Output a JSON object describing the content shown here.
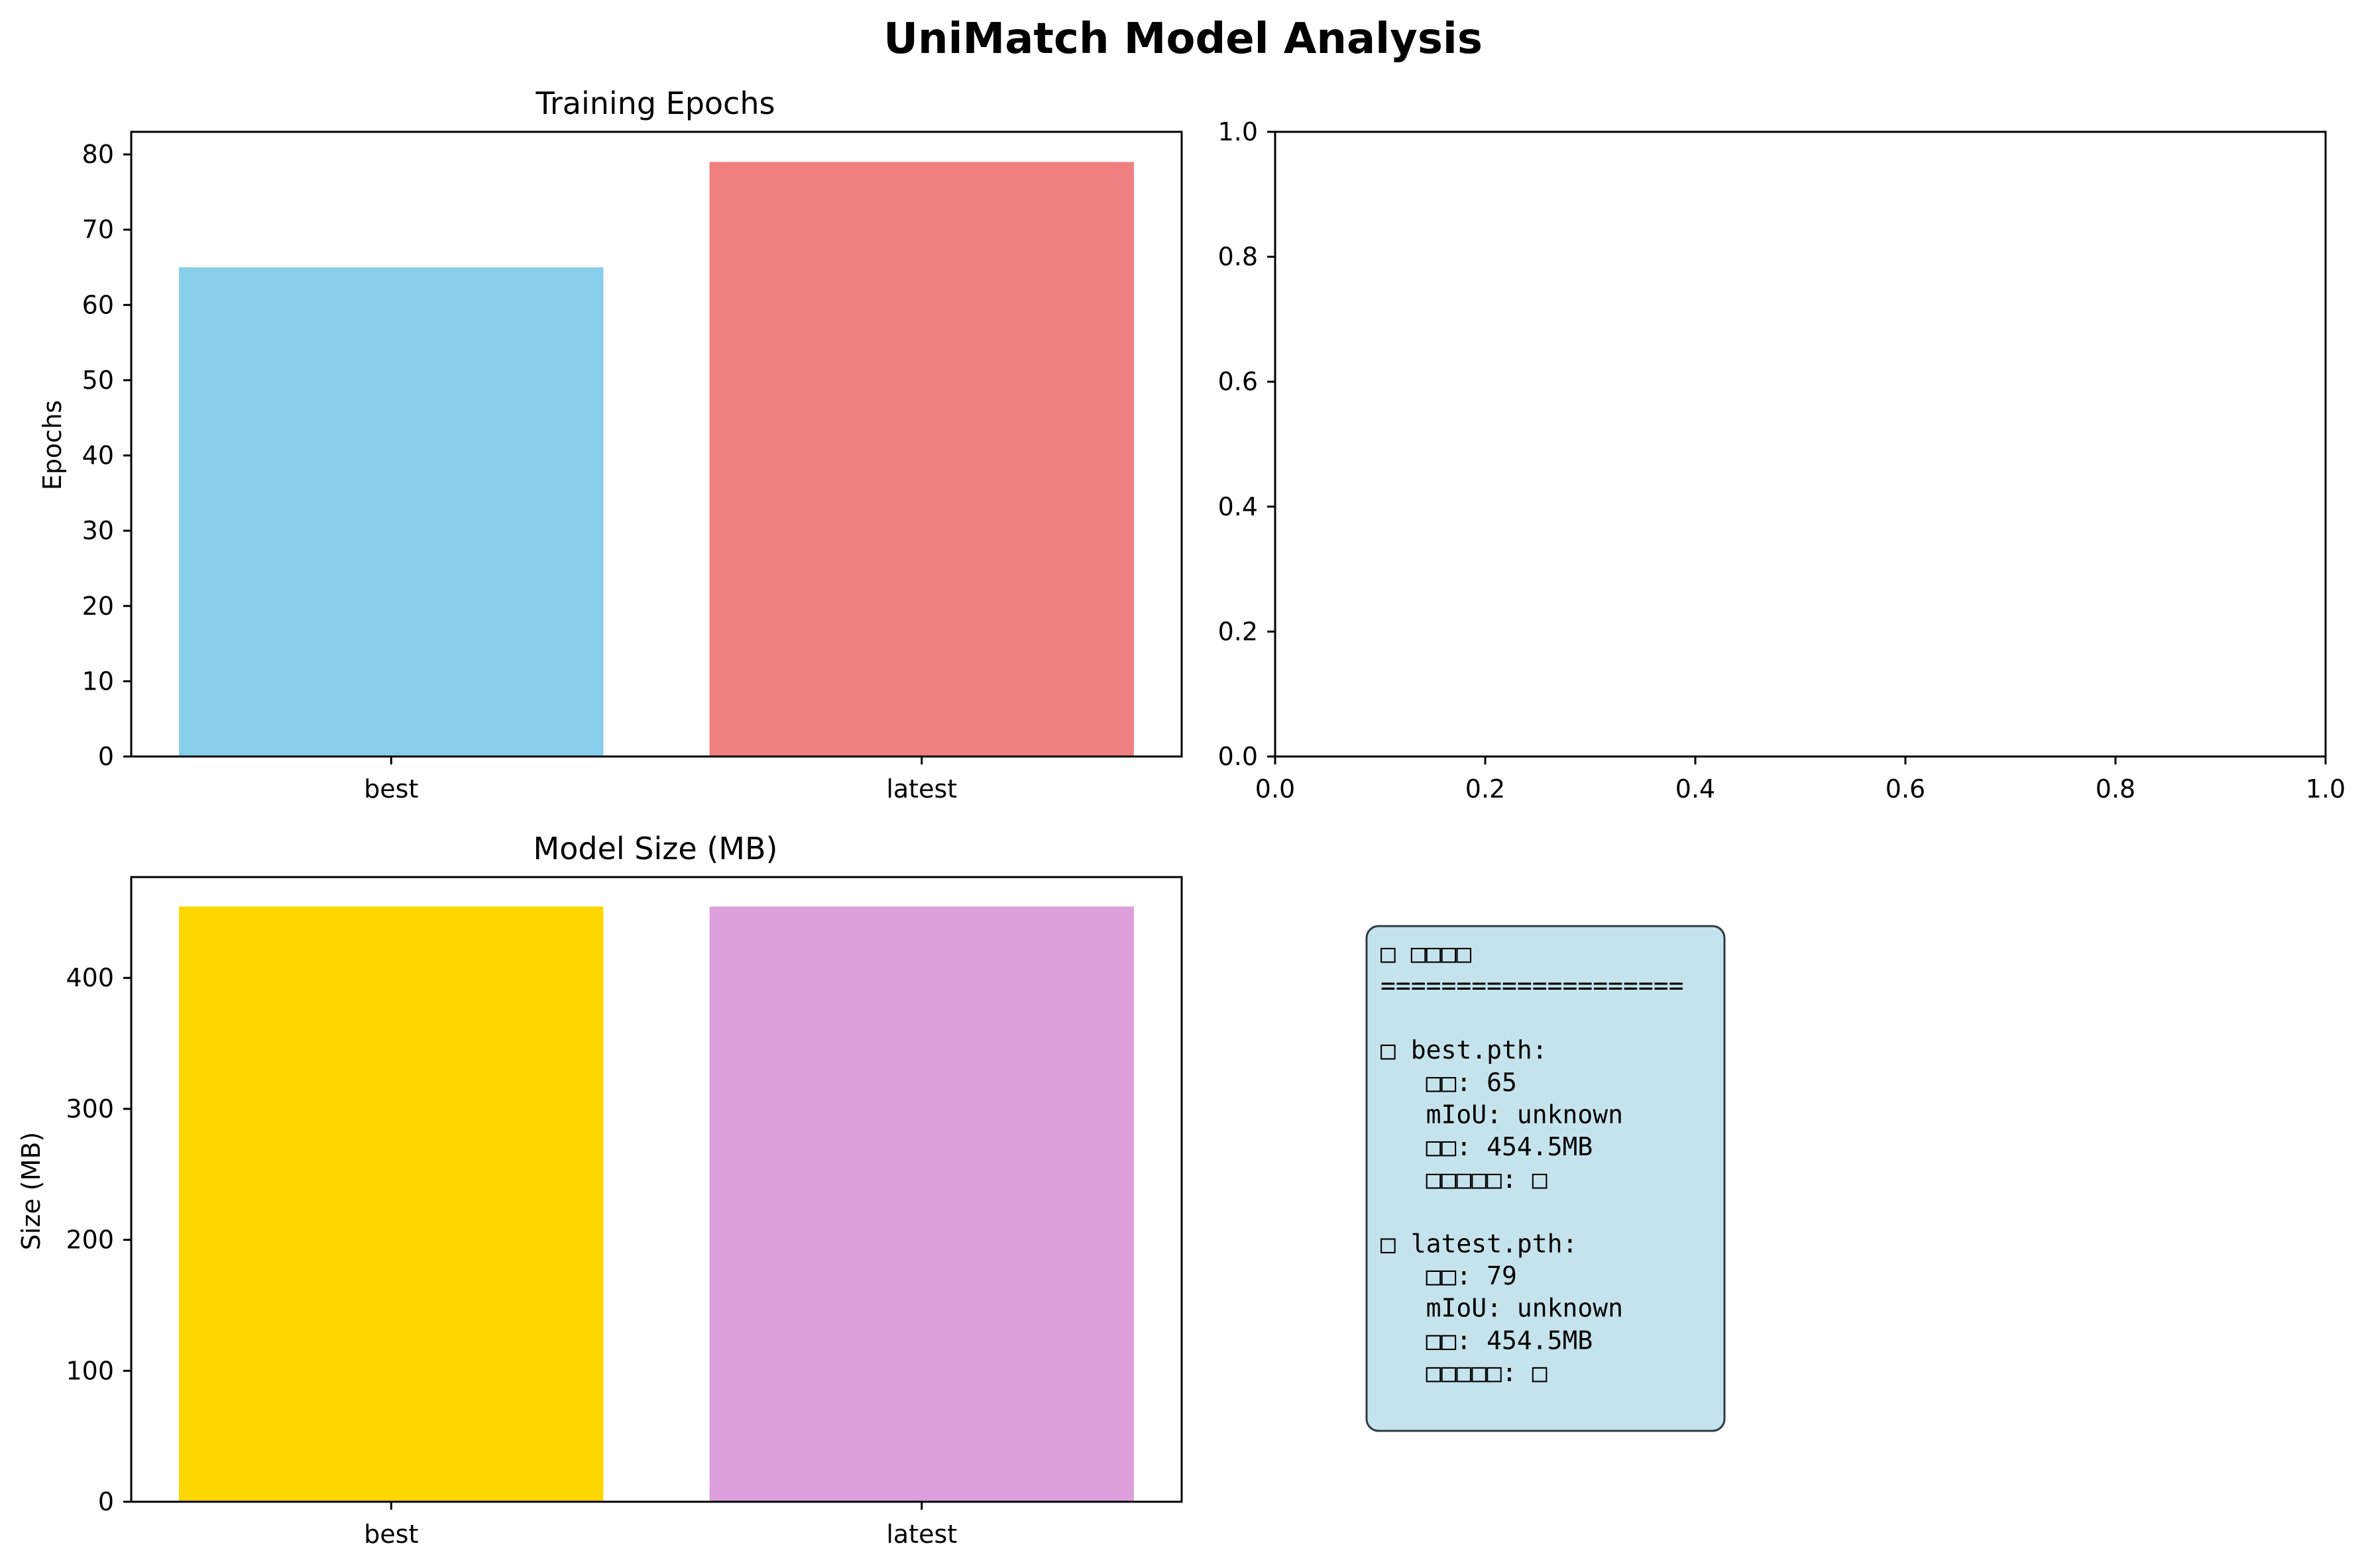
{
  "suptitle": "UniMatch Model Analysis",
  "chart_data": [
    {
      "type": "bar",
      "title": "Training Epochs",
      "xlabel": "",
      "ylabel": "Epochs",
      "categories": [
        "best",
        "latest"
      ],
      "values": [
        65,
        79
      ],
      "colors": [
        "#87CEEB",
        "#F08080"
      ],
      "ylim": [
        0,
        83
      ],
      "yticks": [
        0,
        10,
        20,
        30,
        40,
        50,
        60,
        70,
        80
      ],
      "grid": false
    },
    {
      "type": "scatter",
      "title": "",
      "xlabel": "",
      "ylabel": "",
      "x": [],
      "y": [],
      "xlim": [
        0,
        1
      ],
      "ylim": [
        0,
        1
      ],
      "xticks": [
        "0.0",
        "0.2",
        "0.4",
        "0.6",
        "0.8",
        "1.0"
      ],
      "yticks": [
        "0.0",
        "0.2",
        "0.4",
        "0.6",
        "0.8",
        "1.0"
      ],
      "grid": false
    },
    {
      "type": "bar",
      "title": "Model Size (MB)",
      "xlabel": "",
      "ylabel": "Size (MB)",
      "categories": [
        "best",
        "latest"
      ],
      "values": [
        454.5,
        454.5
      ],
      "colors": [
        "#FFD700",
        "#DDA0DD"
      ],
      "ylim": [
        0,
        477
      ],
      "yticks": [
        0,
        100,
        200,
        300,
        400
      ],
      "grid": false
    }
  ],
  "info_box": {
    "background": "#C5E3EC",
    "lines": [
      "□ □□□□",
      "====================",
      "",
      "□ best.pth:",
      "   □□: 65",
      "   mIoU: unknown",
      "   □□: 454.5MB",
      "   □□□□□: □",
      "",
      "□ latest.pth:",
      "   □□: 79",
      "   mIoU: unknown",
      "   □□: 454.5MB",
      "   □□□□□: □"
    ]
  }
}
